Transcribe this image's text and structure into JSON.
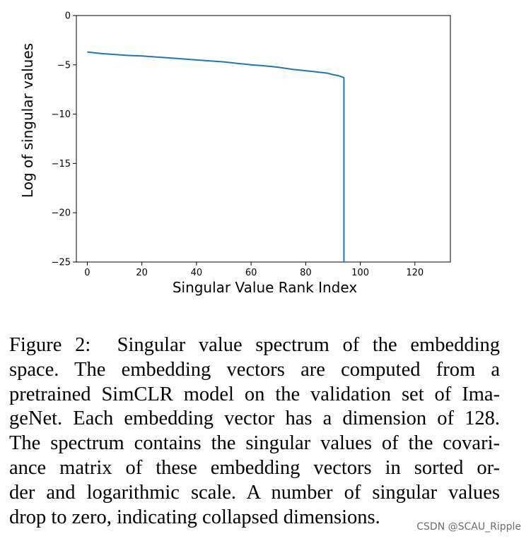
{
  "chart_data": {
    "type": "line",
    "title": "",
    "xlabel": "Singular Value Rank Index",
    "ylabel": "Log of singular values",
    "xlim": [
      -4,
      133
    ],
    "ylim": [
      -25,
      0
    ],
    "xticks": [
      0,
      20,
      40,
      60,
      80,
      100,
      120
    ],
    "yticks": [
      0,
      -5,
      -10,
      -15,
      -20,
      -25
    ],
    "xtick_labels": [
      "0",
      "20",
      "40",
      "60",
      "80",
      "100",
      "120"
    ],
    "ytick_labels": [
      "0",
      "−5",
      "−10",
      "−15",
      "−20",
      "−25"
    ],
    "series": [
      {
        "name": "singular values",
        "color": "#1f77b4",
        "x": [
          0,
          5,
          10,
          15,
          20,
          25,
          30,
          35,
          40,
          45,
          50,
          55,
          60,
          65,
          70,
          75,
          80,
          85,
          88,
          90,
          92,
          93,
          94,
          94
        ],
        "y": [
          -3.7,
          -3.85,
          -3.95,
          -4.05,
          -4.1,
          -4.2,
          -4.3,
          -4.4,
          -4.5,
          -4.6,
          -4.7,
          -4.85,
          -5.0,
          -5.1,
          -5.25,
          -5.45,
          -5.6,
          -5.75,
          -5.85,
          -6.0,
          -6.1,
          -6.2,
          -6.3,
          -25
        ]
      }
    ]
  },
  "caption": {
    "lines": [
      {
        "label": "Figure 2:",
        "text": "Singular value spectrum of the embedding"
      },
      {
        "text": "space.  The embedding vectors are computed from a"
      },
      {
        "text": "pretrained SimCLR model on the validation set of Ima-"
      },
      {
        "text": "geNet. Each embedding vector has a dimension of 128."
      },
      {
        "text": "The spectrum contains the singular values of the covari-"
      },
      {
        "text": "ance matrix of these embedding vectors in sorted or-"
      },
      {
        "text": "der and logarithmic scale. A number of singular values"
      },
      {
        "text": "drop to zero, indicating collapsed dimensions."
      }
    ]
  },
  "watermark": "CSDN @SCAU_Ripple"
}
